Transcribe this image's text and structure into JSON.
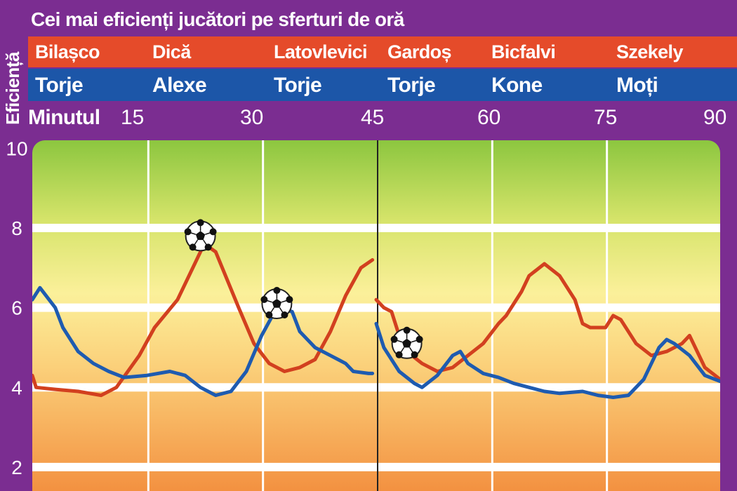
{
  "title": "Cei mai eficienți jucători pe sferturi de oră",
  "y_axis_label": "Eficiență",
  "minute_label": "Minutul",
  "quarters_red": [
    "Bilașco",
    "Dică",
    "Latovlevici",
    "Gardoș",
    "Bicfalvi",
    "Szekely"
  ],
  "quarters_blue": [
    "Torje",
    "Alexe",
    "Torje",
    "Torje",
    "Kone",
    "Moți"
  ],
  "colors": {
    "red_series": "#d2401f",
    "blue_series": "#1e5bb0",
    "background": "#7b2d91"
  },
  "chart_data": {
    "type": "line",
    "xlabel": "Minutul",
    "ylabel": "Eficiență",
    "x_ticks": [
      15,
      30,
      45,
      60,
      75,
      90
    ],
    "y_ticks": [
      2,
      4,
      6,
      8,
      10
    ],
    "xlim": [
      0,
      90
    ],
    "ylim": [
      1.4,
      10.2
    ],
    "grid": true,
    "goal_markers": [
      {
        "x": 22,
        "y": 7.8
      },
      {
        "x": 32,
        "y": 6.1
      },
      {
        "x": 49,
        "y": 5.1
      }
    ],
    "series": [
      {
        "color": "#d2401f",
        "segments": [
          [
            [
              0,
              4.3
            ],
            [
              0.5,
              4.0
            ],
            [
              3,
              3.95
            ],
            [
              6,
              3.9
            ],
            [
              9,
              3.8
            ],
            [
              11,
              4.0
            ],
            [
              14,
              4.8
            ],
            [
              16,
              5.5
            ],
            [
              19,
              6.2
            ],
            [
              21,
              7.0
            ],
            [
              22.5,
              7.6
            ],
            [
              24,
              7.4
            ],
            [
              27,
              6.0
            ],
            [
              29,
              5.1
            ],
            [
              31,
              4.6
            ],
            [
              33,
              4.4
            ],
            [
              35,
              4.5
            ],
            [
              37,
              4.7
            ],
            [
              39,
              5.4
            ],
            [
              41,
              6.3
            ],
            [
              43,
              7.0
            ],
            [
              44.5,
              7.2
            ]
          ],
          [
            [
              45,
              6.2
            ],
            [
              46,
              6.0
            ],
            [
              47,
              5.9
            ],
            [
              48,
              5.3
            ],
            [
              49,
              4.9
            ],
            [
              51,
              4.6
            ],
            [
              53,
              4.4
            ],
            [
              55,
              4.5
            ],
            [
              57,
              4.8
            ],
            [
              59,
              5.1
            ],
            [
              61,
              5.6
            ],
            [
              62,
              5.8
            ],
            [
              64,
              6.4
            ],
            [
              65,
              6.8
            ],
            [
              67,
              7.1
            ],
            [
              69,
              6.8
            ],
            [
              71,
              6.2
            ],
            [
              72,
              5.6
            ],
            [
              73,
              5.5
            ],
            [
              75,
              5.5
            ],
            [
              76,
              5.8
            ],
            [
              77,
              5.7
            ],
            [
              79,
              5.1
            ],
            [
              81,
              4.8
            ],
            [
              83,
              4.9
            ],
            [
              85,
              5.1
            ],
            [
              86,
              5.3
            ],
            [
              88,
              4.5
            ],
            [
              90,
              4.2
            ]
          ]
        ]
      },
      {
        "color": "#1e5bb0",
        "segments": [
          [
            [
              0,
              6.2
            ],
            [
              1,
              6.5
            ],
            [
              3,
              6.0
            ],
            [
              4,
              5.5
            ],
            [
              6,
              4.9
            ],
            [
              8,
              4.6
            ],
            [
              10,
              4.4
            ],
            [
              12,
              4.25
            ],
            [
              15,
              4.3
            ],
            [
              18,
              4.4
            ],
            [
              20,
              4.3
            ],
            [
              22,
              4.0
            ],
            [
              24,
              3.8
            ],
            [
              26,
              3.9
            ],
            [
              28,
              4.4
            ],
            [
              30,
              5.3
            ],
            [
              32,
              6.0
            ],
            [
              34,
              5.9
            ],
            [
              35,
              5.4
            ],
            [
              37,
              5.0
            ],
            [
              39,
              4.8
            ],
            [
              40,
              4.7
            ],
            [
              41,
              4.6
            ],
            [
              42,
              4.4
            ],
            [
              44,
              4.35
            ],
            [
              44.5,
              4.35
            ]
          ],
          [
            [
              45,
              5.6
            ],
            [
              46,
              5.0
            ],
            [
              47,
              4.7
            ],
            [
              48,
              4.4
            ],
            [
              50,
              4.1
            ],
            [
              51,
              4.0
            ],
            [
              53,
              4.3
            ],
            [
              55,
              4.8
            ],
            [
              56,
              4.9
            ],
            [
              57,
              4.6
            ],
            [
              59,
              4.35
            ],
            [
              61,
              4.25
            ],
            [
              63,
              4.1
            ],
            [
              65,
              4.0
            ],
            [
              67,
              3.9
            ],
            [
              69,
              3.85
            ],
            [
              72,
              3.9
            ],
            [
              74,
              3.8
            ],
            [
              76,
              3.75
            ],
            [
              78,
              3.8
            ],
            [
              80,
              4.2
            ],
            [
              82,
              5.0
            ],
            [
              83,
              5.2
            ],
            [
              84,
              5.1
            ],
            [
              86,
              4.8
            ],
            [
              88,
              4.3
            ],
            [
              90,
              4.15
            ]
          ]
        ]
      }
    ]
  }
}
